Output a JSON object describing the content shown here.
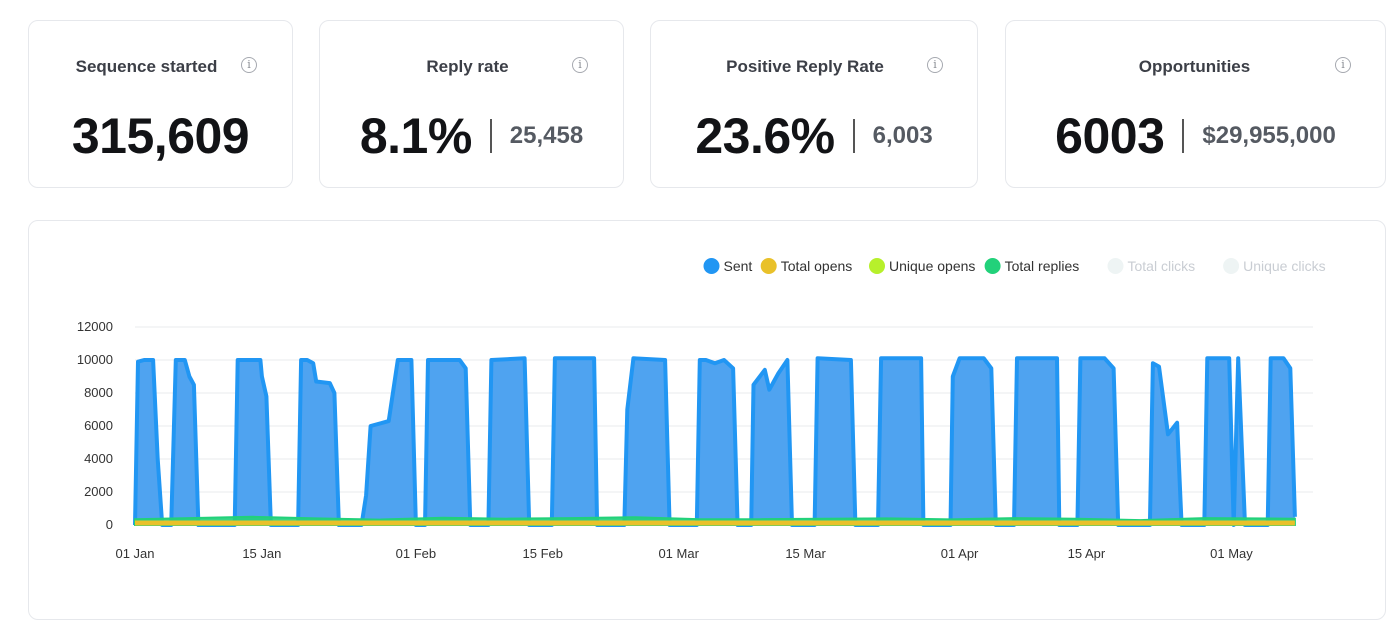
{
  "stats": [
    {
      "title": "Sequence started",
      "value": "315,609",
      "sub": ""
    },
    {
      "title": "Reply rate",
      "value": "8.1%",
      "sub": "25,458"
    },
    {
      "title": "Positive Reply Rate",
      "value": "23.6%",
      "sub": "6,003"
    },
    {
      "title": "Opportunities",
      "value": "6003",
      "sub": "$29,955,000"
    }
  ],
  "info_icon": "info-circle-icon",
  "chart_data": {
    "type": "area",
    "title": "",
    "xlabel": "",
    "ylabel": "",
    "ylim": [
      0,
      12000
    ],
    "yticks": [
      0,
      2000,
      4000,
      6000,
      8000,
      10000,
      12000
    ],
    "xlim": [
      "2024-01-01",
      "2024-05-10"
    ],
    "xticks": [
      "2024-01-01",
      "2024-01-15",
      "2024-02-01",
      "2024-02-15",
      "2024-03-01",
      "2024-03-15",
      "2024-04-01",
      "2024-04-15",
      "2024-05-01"
    ],
    "xtick_labels": [
      "01 Jan",
      "15 Jan",
      "01 Feb",
      "15 Feb",
      "01 Mar",
      "15 Mar",
      "01 Apr",
      "15 Apr",
      "01 May"
    ],
    "grid": true,
    "legend_position": "top-right",
    "series": [
      {
        "name": "Sent",
        "color": "#2196f3",
        "fill": "#4fa3f0",
        "points": [
          [
            "2024-01-01",
            0
          ],
          [
            "2024-01-01T08:00",
            9900
          ],
          [
            "2024-01-02",
            10000
          ],
          [
            "2024-01-03",
            10000
          ],
          [
            "2024-01-03T12:00",
            4000
          ],
          [
            "2024-01-04",
            0
          ],
          [
            "2024-01-05",
            0
          ],
          [
            "2024-01-05T12:00",
            10000
          ],
          [
            "2024-01-06T12:00",
            10000
          ],
          [
            "2024-01-07",
            9000
          ],
          [
            "2024-01-07T12:00",
            8500
          ],
          [
            "2024-01-08",
            0
          ],
          [
            "2024-01-12",
            0
          ],
          [
            "2024-01-12T08:00",
            10000
          ],
          [
            "2024-01-14T20:00",
            10000
          ],
          [
            "2024-01-15",
            9000
          ],
          [
            "2024-01-15T12:00",
            7800
          ],
          [
            "2024-01-16",
            0
          ],
          [
            "2024-01-19",
            0
          ],
          [
            "2024-01-19T08:00",
            10000
          ],
          [
            "2024-01-20",
            10000
          ],
          [
            "2024-01-20T16:00",
            9800
          ],
          [
            "2024-01-21",
            8700
          ],
          [
            "2024-01-22T12:00",
            8600
          ],
          [
            "2024-01-23",
            8000
          ],
          [
            "2024-01-23T12:00",
            0
          ],
          [
            "2024-01-26",
            0
          ],
          [
            "2024-01-26T12:00",
            1800
          ],
          [
            "2024-01-27",
            6000
          ],
          [
            "2024-01-29",
            6300
          ],
          [
            "2024-01-30",
            10000
          ],
          [
            "2024-01-31T12:00",
            10000
          ],
          [
            "2024-02-01",
            0
          ],
          [
            "2024-02-02",
            0
          ],
          [
            "2024-02-02T08:00",
            10000
          ],
          [
            "2024-02-05T20:00",
            10000
          ],
          [
            "2024-02-06T12:00",
            9500
          ],
          [
            "2024-02-07",
            0
          ],
          [
            "2024-02-09",
            0
          ],
          [
            "2024-02-09T08:00",
            10000
          ],
          [
            "2024-02-13",
            10100
          ],
          [
            "2024-02-13T12:00",
            0
          ],
          [
            "2024-02-16",
            0
          ],
          [
            "2024-02-16T08:00",
            10100
          ],
          [
            "2024-02-20T16:00",
            10100
          ],
          [
            "2024-02-21",
            0
          ],
          [
            "2024-02-24",
            0
          ],
          [
            "2024-02-24T08:00",
            7000
          ],
          [
            "2024-02-25",
            10100
          ],
          [
            "2024-02-28T12:00",
            10000
          ],
          [
            "2024-02-29",
            0
          ],
          [
            "2024-03-03",
            0
          ],
          [
            "2024-03-03T08:00",
            10000
          ],
          [
            "2024-03-04",
            10000
          ],
          [
            "2024-03-05",
            9800
          ],
          [
            "2024-03-06",
            10000
          ],
          [
            "2024-03-07",
            9500
          ],
          [
            "2024-03-07T12:00",
            0
          ],
          [
            "2024-03-09",
            0
          ],
          [
            "2024-03-09T06:00",
            8500
          ],
          [
            "2024-03-10T12:00",
            9400
          ],
          [
            "2024-03-11",
            8200
          ],
          [
            "2024-03-12",
            9200
          ],
          [
            "2024-03-13",
            10000
          ],
          [
            "2024-03-13T12:00",
            0
          ],
          [
            "2024-03-16",
            0
          ],
          [
            "2024-03-16T08:00",
            10100
          ],
          [
            "2024-03-20",
            10000
          ],
          [
            "2024-03-20T12:00",
            0
          ],
          [
            "2024-03-23",
            0
          ],
          [
            "2024-03-23T08:00",
            10100
          ],
          [
            "2024-03-27T18:00",
            10100
          ],
          [
            "2024-03-28",
            0
          ],
          [
            "2024-03-31",
            0
          ],
          [
            "2024-03-31T06:00",
            9000
          ],
          [
            "2024-04-01",
            10100
          ],
          [
            "2024-04-03T16:00",
            10100
          ],
          [
            "2024-04-04T12:00",
            9500
          ],
          [
            "2024-04-05",
            0
          ],
          [
            "2024-04-07",
            0
          ],
          [
            "2024-04-07T08:00",
            10100
          ],
          [
            "2024-04-11T18:00",
            10100
          ],
          [
            "2024-04-12",
            0
          ],
          [
            "2024-04-14",
            0
          ],
          [
            "2024-04-14T08:00",
            10100
          ],
          [
            "2024-04-17",
            10100
          ],
          [
            "2024-04-18",
            9500
          ],
          [
            "2024-04-18T12:00",
            0
          ],
          [
            "2024-04-22",
            0
          ],
          [
            "2024-04-22T08:00",
            9800
          ],
          [
            "2024-04-23",
            9600
          ],
          [
            "2024-04-24",
            5500
          ],
          [
            "2024-04-25",
            6200
          ],
          [
            "2024-04-25T12:00",
            0
          ],
          [
            "2024-04-28",
            0
          ],
          [
            "2024-04-28T08:00",
            10100
          ],
          [
            "2024-04-30T18:00",
            10100
          ],
          [
            "2024-05-01T06:00",
            0
          ],
          [
            "2024-05-01T18:00",
            10100
          ],
          [
            "2024-05-02T12:00",
            0
          ],
          [
            "2024-05-05",
            0
          ],
          [
            "2024-05-05T08:00",
            10100
          ],
          [
            "2024-05-06T18:00",
            10100
          ],
          [
            "2024-05-07T12:00",
            9500
          ],
          [
            "2024-05-08",
            500
          ]
        ]
      },
      {
        "name": "Total opens",
        "color": "#e9c12a",
        "fill": "#e9c12a",
        "points": [
          [
            "2024-01-01",
            120
          ],
          [
            "2024-05-08",
            120
          ]
        ]
      },
      {
        "name": "Unique opens",
        "color": "#b7f02b",
        "fill": "#b7f02b",
        "points": []
      },
      {
        "name": "Total replies",
        "color": "#22d17a",
        "fill": "#22d17a",
        "points": [
          [
            "2024-01-01",
            350
          ],
          [
            "2024-01-07",
            420
          ],
          [
            "2024-01-14",
            500
          ],
          [
            "2024-01-21",
            400
          ],
          [
            "2024-01-28",
            330
          ],
          [
            "2024-02-04",
            440
          ],
          [
            "2024-02-11",
            380
          ],
          [
            "2024-02-18",
            420
          ],
          [
            "2024-02-25",
            470
          ],
          [
            "2024-03-03",
            360
          ],
          [
            "2024-03-10",
            350
          ],
          [
            "2024-03-17",
            380
          ],
          [
            "2024-03-24",
            400
          ],
          [
            "2024-03-31",
            340
          ],
          [
            "2024-04-07",
            420
          ],
          [
            "2024-04-14",
            380
          ],
          [
            "2024-04-21",
            300
          ],
          [
            "2024-04-28",
            420
          ],
          [
            "2024-05-08",
            380
          ]
        ]
      },
      {
        "name": "Total clicks",
        "color": "#eef4f4",
        "fill": "#eef4f4",
        "points": []
      },
      {
        "name": "Unique clicks",
        "color": "#eef4f4",
        "fill": "#eef4f4",
        "points": []
      }
    ]
  }
}
